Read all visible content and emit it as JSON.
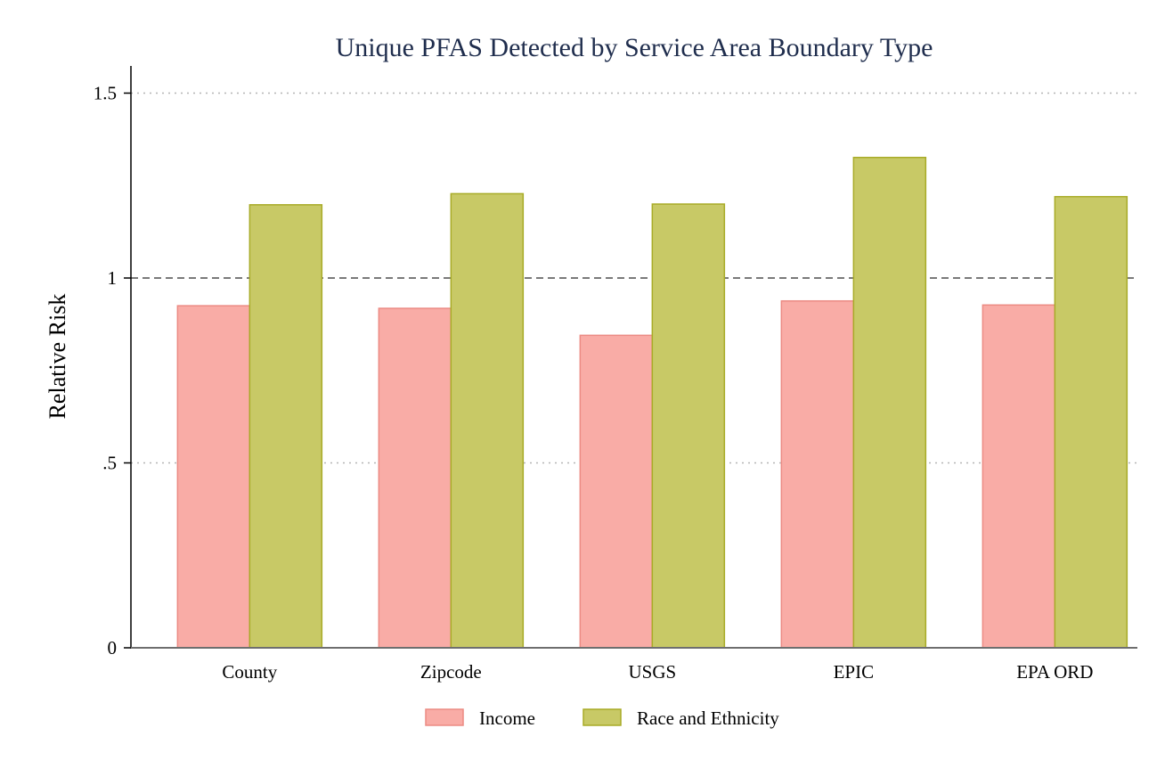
{
  "chart_data": {
    "type": "bar",
    "title": "Unique PFAS Detected by Service Area Boundary Type",
    "xlabel": "",
    "ylabel": "Relative Risk",
    "categories": [
      "County",
      "Zipcode",
      "USGS",
      "EPIC",
      "EPA ORD"
    ],
    "series": [
      {
        "name": "Income",
        "values": [
          0.925,
          0.918,
          0.845,
          0.938,
          0.927
        ],
        "color": "#f9aca6",
        "stroke": "#ec8b84"
      },
      {
        "name": "Race and Ethnicity",
        "values": [
          1.198,
          1.228,
          1.2,
          1.326,
          1.22
        ],
        "color": "#c8c966",
        "stroke": "#a8ab27"
      }
    ],
    "ylim": [
      0,
      1.57
    ],
    "yticks": [
      0,
      0.5,
      1,
      1.5
    ],
    "ytick_labels": [
      "0",
      ".5",
      "1",
      "1.5"
    ],
    "reference_line": 1,
    "grid": "dotted horizontal",
    "legend_position": "bottom"
  }
}
